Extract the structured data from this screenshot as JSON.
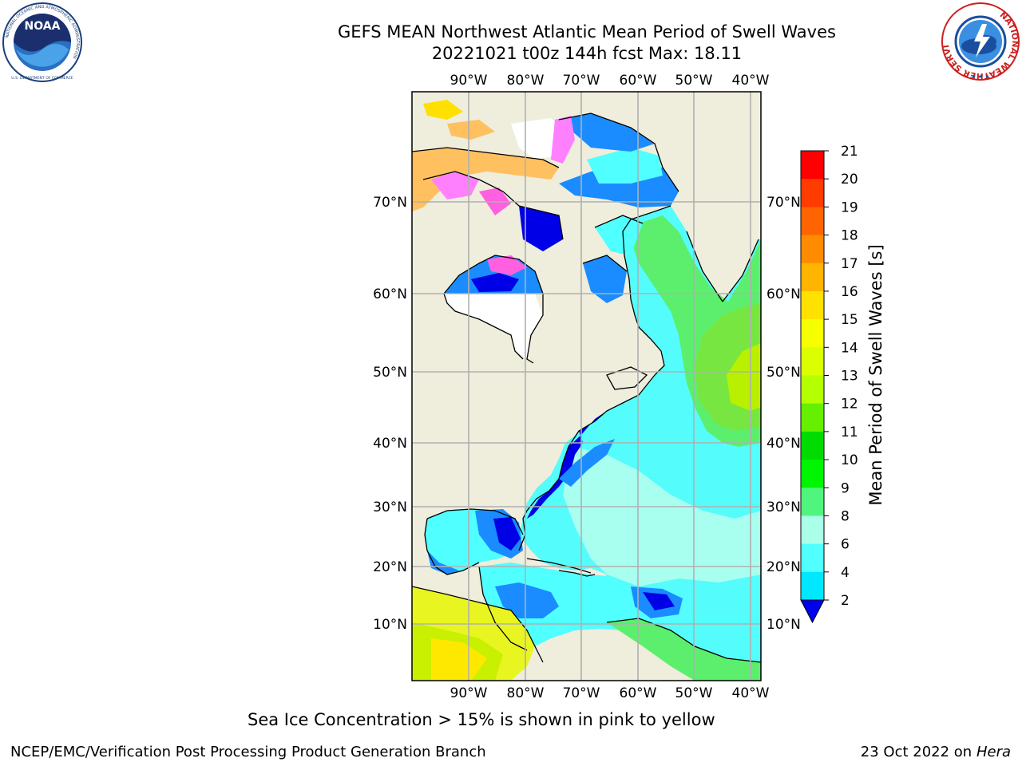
{
  "title": {
    "line1": "GEFS MEAN Northwest Atlantic Mean Period of Swell Waves",
    "line2": "20221021 t00z 144h fcst   Max: 18.11"
  },
  "logos": {
    "noaa": {
      "text": "NOAA",
      "ring_text": "NATIONAL OCEANIC AND ATMOSPHERIC ADMINISTRATION",
      "bottom_text": "U.S. DEPARTMENT OF COMMERCE"
    },
    "nws": {
      "ring_text": "NATIONAL WEATHER SERVICE"
    }
  },
  "map": {
    "lon_labels": [
      "90°W",
      "80°W",
      "70°W",
      "60°W",
      "50°W",
      "40°W"
    ],
    "lat_labels": [
      "70°N",
      "60°N",
      "50°N",
      "40°N",
      "30°N",
      "20°N",
      "10°N"
    ],
    "colors": {
      "land": "#efeddc",
      "ice_free": "#ffffff",
      "grid": "#b0b0b0"
    }
  },
  "colorbar": {
    "label": "Mean Period of Swell Waves [s]",
    "ticks": [
      "21",
      "20",
      "19",
      "18",
      "17",
      "16",
      "15",
      "14",
      "13",
      "12",
      "11",
      "10",
      "9",
      "8",
      "6",
      "4",
      "2"
    ],
    "colors": [
      "#ff0000",
      "#ff3b00",
      "#ff6400",
      "#ff8c00",
      "#ffb400",
      "#ffe100",
      "#f5ff00",
      "#dcff00",
      "#b4ff00",
      "#64f000",
      "#00dc00",
      "#00f500",
      "#50f57d",
      "#aaffe8",
      "#50ffff",
      "#00e8ff",
      "#0078ff"
    ],
    "under_color": "#0000f0"
  },
  "ice_note": "Sea Ice Concentration > 15% is shown in pink to yellow",
  "footer": {
    "left": "NCEP/EMC/Verification Post Processing Product Generation Branch",
    "right_date": "23 Oct 2022 on ",
    "right_host": "Hera"
  }
}
